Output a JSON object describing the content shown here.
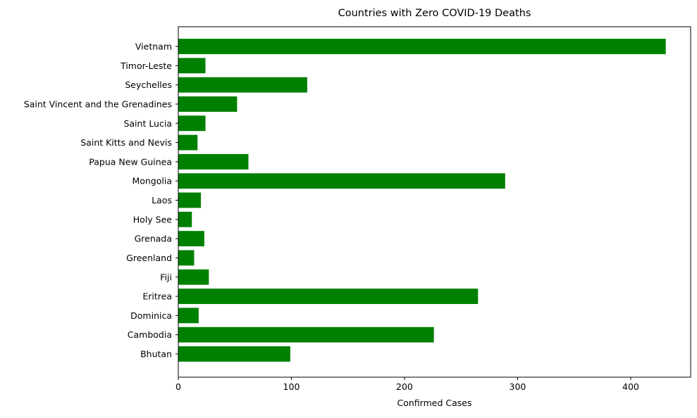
{
  "chart_data": {
    "type": "bar",
    "orientation": "horizontal",
    "title": "Countries with Zero COVID-19 Deaths",
    "xlabel": "Confirmed Cases",
    "ylabel": "",
    "xlim": [
      0,
      453
    ],
    "xticks": [
      0,
      100,
      200,
      300,
      400
    ],
    "grid": false,
    "legend": "none",
    "bar_color": "#008000",
    "categories": [
      "Bhutan",
      "Cambodia",
      "Dominica",
      "Eritrea",
      "Fiji",
      "Greenland",
      "Grenada",
      "Holy See",
      "Laos",
      "Mongolia",
      "Papua New Guinea",
      "Saint Kitts and Nevis",
      "Saint Lucia",
      "Saint Vincent and the Grenadines",
      "Seychelles",
      "Timor-Leste",
      "Vietnam"
    ],
    "values": [
      99,
      226,
      18,
      265,
      27,
      14,
      23,
      12,
      20,
      289,
      62,
      17,
      24,
      52,
      114,
      24,
      431
    ]
  }
}
